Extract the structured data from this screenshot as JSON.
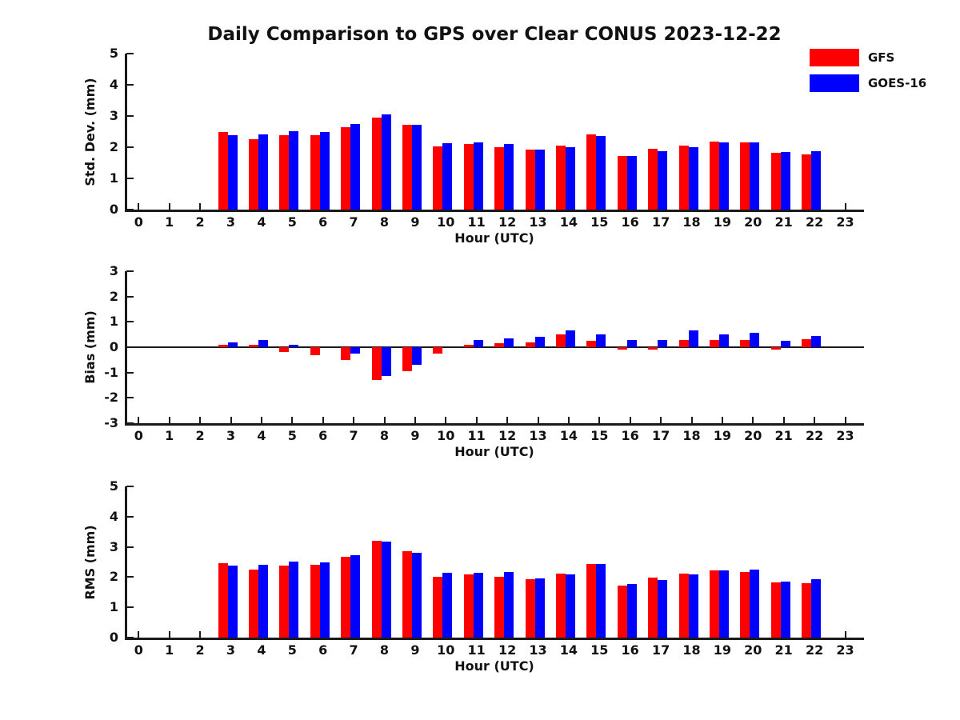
{
  "title": "Daily Comparison to GPS over Clear CONUS 2023-12-22",
  "legend": {
    "items": [
      {
        "label": "GFS",
        "color": "#ff0000"
      },
      {
        "label": "GOES-16",
        "color": "#0000ff"
      }
    ]
  },
  "colors": {
    "gfs": "#ff0000",
    "goes16": "#0000ff",
    "axis": "#1a1a1a",
    "background": "#ffffff"
  },
  "chart_data": [
    {
      "type": "bar",
      "panel": "std-dev",
      "ylabel": "Std. Dev. (mm)",
      "xlabel": "Hour (UTC)",
      "ylim": [
        0,
        5
      ],
      "yticks": [
        0,
        1,
        2,
        3,
        4,
        5
      ],
      "grid": false,
      "legend_position": "upper-right-outside",
      "categories": [
        0,
        1,
        2,
        3,
        4,
        5,
        6,
        7,
        8,
        9,
        10,
        11,
        12,
        13,
        14,
        15,
        16,
        17,
        18,
        19,
        20,
        21,
        22,
        23
      ],
      "series": [
        {
          "name": "GFS",
          "color": "#ff0000",
          "values": [
            null,
            null,
            null,
            2.49,
            2.26,
            2.38,
            2.39,
            2.65,
            2.96,
            2.72,
            2.03,
            2.1,
            2.0,
            1.92,
            2.05,
            2.42,
            1.71,
            1.96,
            2.06,
            2.19,
            2.15,
            1.82,
            1.78,
            null
          ]
        },
        {
          "name": "GOES-16",
          "color": "#0000ff",
          "values": [
            null,
            null,
            null,
            2.38,
            2.41,
            2.52,
            2.49,
            2.75,
            3.04,
            2.72,
            2.14,
            2.15,
            2.11,
            1.92,
            2.0,
            2.37,
            1.71,
            1.86,
            2.0,
            2.15,
            2.15,
            1.84,
            1.86,
            null
          ]
        }
      ]
    },
    {
      "type": "bar",
      "panel": "bias",
      "ylabel": "Bias (mm)",
      "xlabel": "Hour (UTC)",
      "ylim": [
        -3,
        3
      ],
      "yticks": [
        -3,
        -2,
        -1,
        0,
        1,
        2,
        3
      ],
      "zero_line": true,
      "grid": false,
      "categories": [
        0,
        1,
        2,
        3,
        4,
        5,
        6,
        7,
        8,
        9,
        10,
        11,
        12,
        13,
        14,
        15,
        16,
        17,
        18,
        19,
        20,
        21,
        22,
        23
      ],
      "series": [
        {
          "name": "GFS",
          "color": "#ff0000",
          "values": [
            null,
            null,
            null,
            0.1,
            0.1,
            -0.2,
            -0.3,
            -0.5,
            -1.3,
            -0.95,
            -0.25,
            0.1,
            0.15,
            0.2,
            0.5,
            0.25,
            -0.1,
            -0.1,
            0.3,
            0.28,
            0.3,
            -0.08,
            0.32,
            null
          ]
        },
        {
          "name": "GOES-16",
          "color": "#0000ff",
          "values": [
            null,
            null,
            null,
            0.2,
            0.3,
            0.1,
            0.0,
            -0.25,
            -1.15,
            -0.7,
            0.0,
            0.3,
            0.35,
            0.4,
            0.65,
            0.5,
            0.3,
            0.28,
            0.65,
            0.5,
            0.58,
            0.25,
            0.45,
            null
          ]
        }
      ]
    },
    {
      "type": "bar",
      "panel": "rms",
      "ylabel": "RMS (mm)",
      "xlabel": "Hour (UTC)",
      "ylim": [
        0,
        5
      ],
      "yticks": [
        0,
        1,
        2,
        3,
        4,
        5
      ],
      "grid": false,
      "categories": [
        0,
        1,
        2,
        3,
        4,
        5,
        6,
        7,
        8,
        9,
        10,
        11,
        12,
        13,
        14,
        15,
        16,
        17,
        18,
        19,
        20,
        21,
        22,
        23
      ],
      "series": [
        {
          "name": "GFS",
          "color": "#ff0000",
          "values": [
            null,
            null,
            null,
            2.47,
            2.26,
            2.39,
            2.4,
            2.67,
            3.21,
            2.87,
            2.02,
            2.1,
            2.02,
            1.93,
            2.12,
            2.44,
            1.72,
            1.98,
            2.11,
            2.21,
            2.16,
            1.83,
            1.8,
            null
          ]
        },
        {
          "name": "GOES-16",
          "color": "#0000ff",
          "values": [
            null,
            null,
            null,
            2.39,
            2.41,
            2.52,
            2.5,
            2.73,
            3.18,
            2.8,
            2.15,
            2.15,
            2.16,
            1.96,
            2.08,
            2.43,
            1.76,
            1.91,
            2.08,
            2.21,
            2.25,
            1.86,
            1.93,
            null
          ]
        }
      ]
    }
  ]
}
